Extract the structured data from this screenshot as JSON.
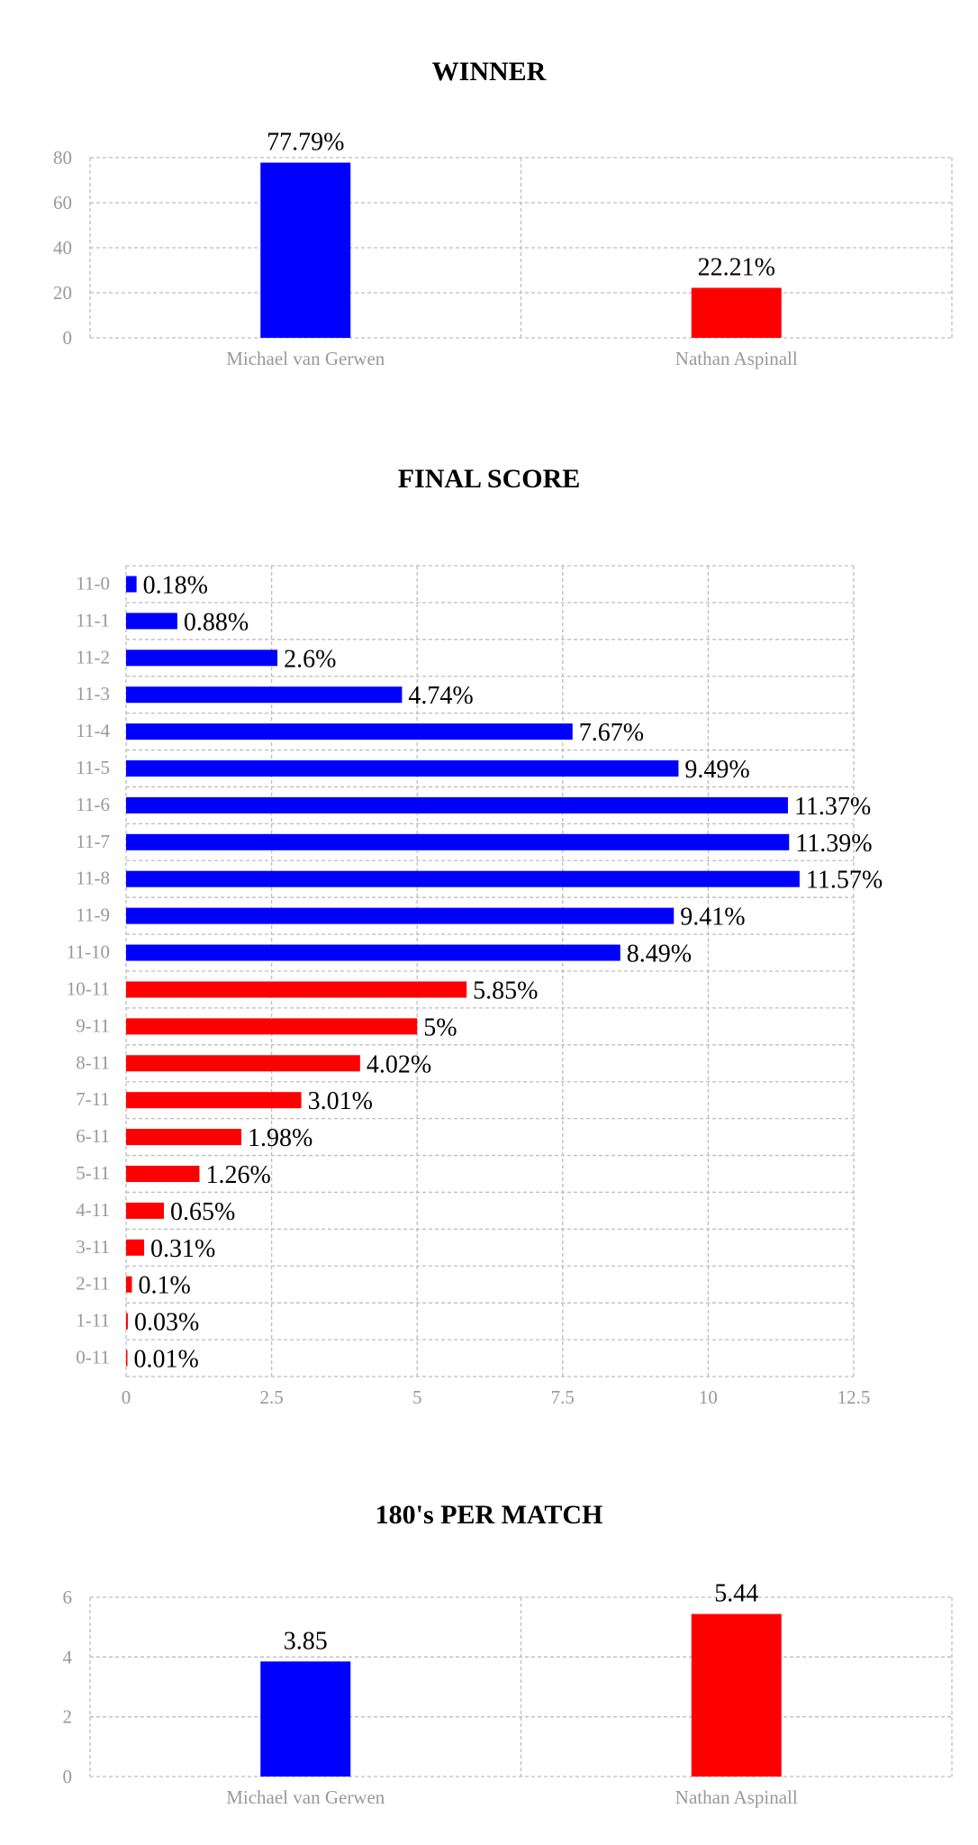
{
  "colors": {
    "blue": "#0000ff",
    "red": "#ff0000",
    "grid": "#bdbdbd",
    "tick": "#999999"
  },
  "chart_data": [
    {
      "id": "winner",
      "type": "bar",
      "title": "WINNER",
      "categories": [
        "Michael van Gerwen",
        "Nathan Aspinall"
      ],
      "values": [
        77.79,
        22.21
      ],
      "data_labels": [
        "77.79%",
        "22.21%"
      ],
      "colors": [
        "#0000ff",
        "#ff0000"
      ],
      "y_ticks": [
        0,
        20,
        40,
        60,
        80
      ],
      "ylim": [
        0,
        80
      ],
      "grid": true
    },
    {
      "id": "final-score",
      "type": "bar",
      "orientation": "horizontal",
      "title": "FINAL SCORE",
      "categories": [
        "11-0",
        "11-1",
        "11-2",
        "11-3",
        "11-4",
        "11-5",
        "11-6",
        "11-7",
        "11-8",
        "11-9",
        "11-10",
        "10-11",
        "9-11",
        "8-11",
        "7-11",
        "6-11",
        "5-11",
        "4-11",
        "3-11",
        "2-11",
        "1-11",
        "0-11"
      ],
      "values": [
        0.18,
        0.88,
        2.6,
        4.74,
        7.67,
        9.49,
        11.37,
        11.39,
        11.57,
        9.41,
        8.49,
        5.85,
        5,
        4.02,
        3.01,
        1.98,
        1.26,
        0.65,
        0.31,
        0.1,
        0.03,
        0.01
      ],
      "data_labels": [
        "0.18%",
        "0.88%",
        "2.6%",
        "4.74%",
        "7.67%",
        "9.49%",
        "11.37%",
        "11.39%",
        "11.57%",
        "9.41%",
        "8.49%",
        "5.85%",
        "5%",
        "4.02%",
        "3.01%",
        "1.98%",
        "1.26%",
        "0.65%",
        "0.31%",
        "0.1%",
        "0.03%",
        "0.01%"
      ],
      "colors": [
        "#0000ff",
        "#0000ff",
        "#0000ff",
        "#0000ff",
        "#0000ff",
        "#0000ff",
        "#0000ff",
        "#0000ff",
        "#0000ff",
        "#0000ff",
        "#0000ff",
        "#ff0000",
        "#ff0000",
        "#ff0000",
        "#ff0000",
        "#ff0000",
        "#ff0000",
        "#ff0000",
        "#ff0000",
        "#ff0000",
        "#ff0000",
        "#ff0000"
      ],
      "x_ticks": [
        0,
        2.5,
        5,
        7.5,
        10,
        12.5
      ],
      "xlim": [
        0,
        12.5
      ],
      "grid": true
    },
    {
      "id": "180s",
      "type": "bar",
      "title": "180's PER MATCH",
      "categories": [
        "Michael van Gerwen",
        "Nathan Aspinall"
      ],
      "values": [
        3.85,
        5.44
      ],
      "data_labels": [
        "3.85",
        "5.44"
      ],
      "colors": [
        "#0000ff",
        "#ff0000"
      ],
      "y_ticks": [
        0,
        2,
        4,
        6
      ],
      "ylim": [
        0,
        6
      ],
      "grid": true
    }
  ]
}
